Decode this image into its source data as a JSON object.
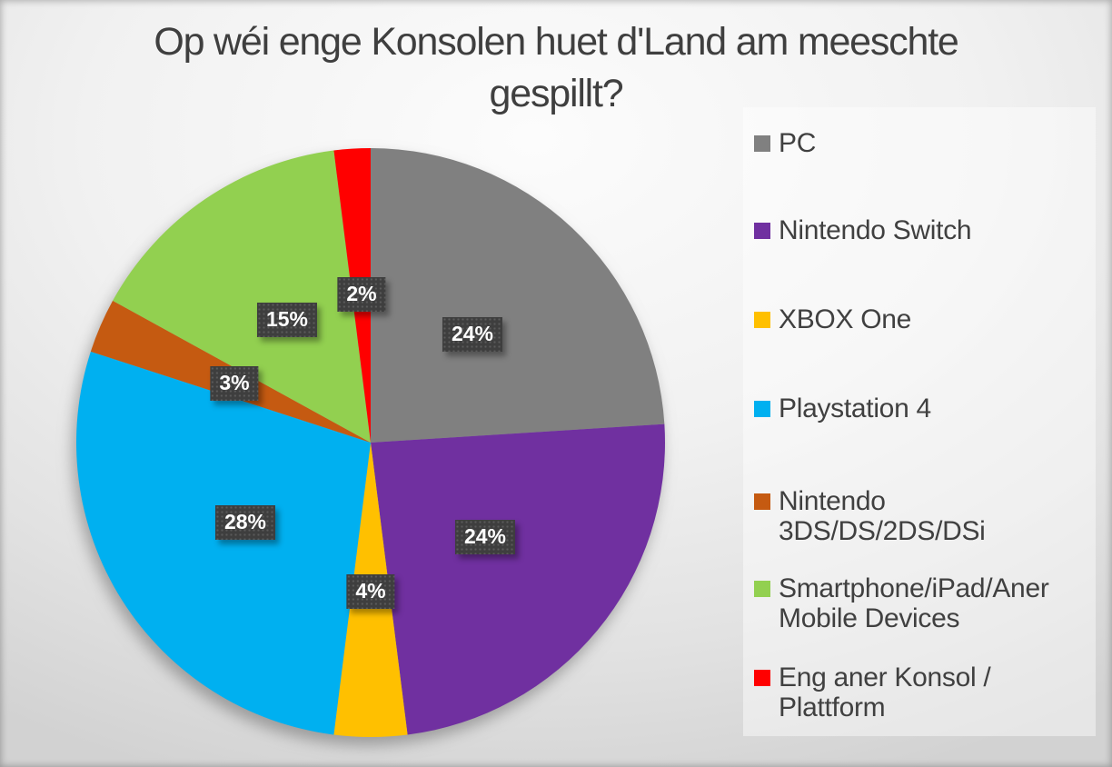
{
  "chart_data": {
    "type": "pie",
    "title": "Op wéi enge Konsolen huet d'Land am meeschte gespillt?",
    "categories": [
      "PC",
      "Nintendo Switch",
      "XBOX One",
      "Playstation 4",
      "Nintendo 3DS/DS/2DS/DSi",
      "Smartphone/iPad/Aner Mobile Devices",
      "Eng aner Konsol / Plattform"
    ],
    "values": [
      24,
      24,
      4,
      28,
      3,
      15,
      2
    ],
    "data_labels": [
      "24%",
      "24%",
      "4%",
      "28%",
      "3%",
      "15%",
      "2%"
    ],
    "colors": [
      "#808080",
      "#7030A0",
      "#FFC000",
      "#00B0F0",
      "#C55A11",
      "#92D050",
      "#FF0000"
    ],
    "unit": "%",
    "start_angle_deg": 0,
    "direction": "clockwise",
    "legend_position": "right",
    "label_distance_ratio": 0.505,
    "label_box_color": "#3e3e3e",
    "label_text_color": "#ffffff",
    "text_color": "#404040"
  }
}
